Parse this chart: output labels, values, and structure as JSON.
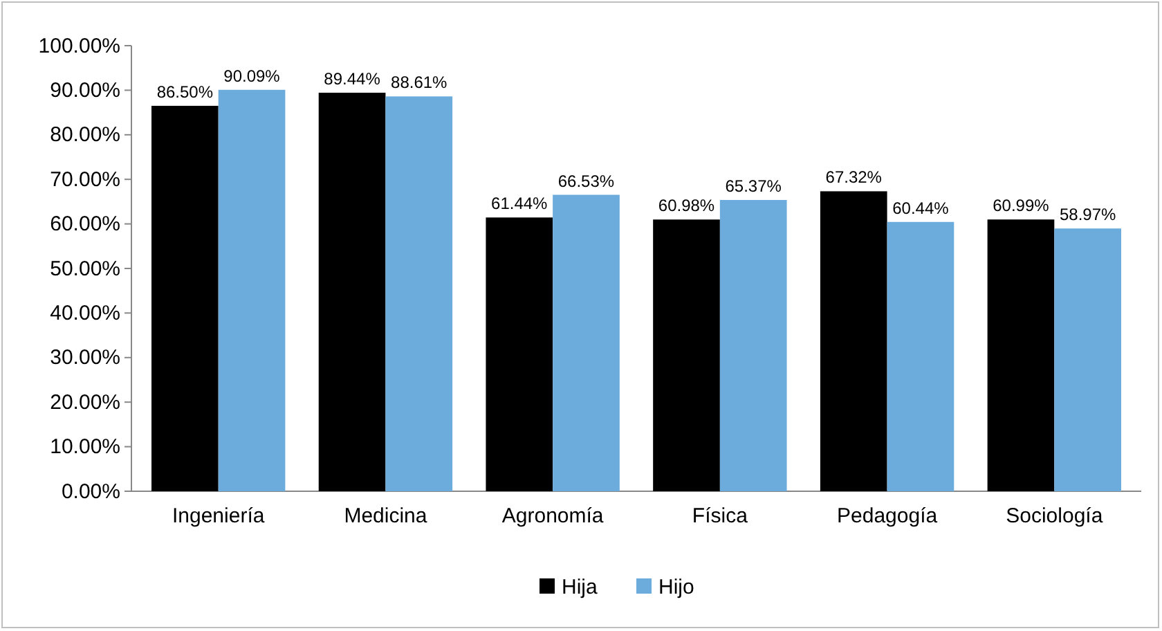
{
  "chart_data": {
    "type": "bar",
    "categories": [
      "Ingeniería",
      "Medicina",
      "Agronomía",
      "Física",
      "Pedagogía",
      "Sociología"
    ],
    "series": [
      {
        "name": "Hija",
        "color": "#000000",
        "values": [
          86.5,
          89.44,
          61.44,
          60.98,
          67.32,
          60.99
        ],
        "value_labels": [
          "86.50%",
          "89.44%",
          "61.44%",
          "60.98%",
          "67.32%",
          "60.99%"
        ]
      },
      {
        "name": "Hijo",
        "color": "#6cacdc",
        "values": [
          90.09,
          88.61,
          66.53,
          65.37,
          60.44,
          58.97
        ],
        "value_labels": [
          "90.09%",
          "88.61%",
          "66.53%",
          "65.37%",
          "60.44%",
          "58.97%"
        ]
      }
    ],
    "ylim": [
      0,
      100
    ],
    "yticks": [
      {
        "value": 0,
        "label": "0.00%"
      },
      {
        "value": 10,
        "label": "10.00%"
      },
      {
        "value": 20,
        "label": "20.00%"
      },
      {
        "value": 30,
        "label": "30.00%"
      },
      {
        "value": 40,
        "label": "40.00%"
      },
      {
        "value": 50,
        "label": "50.00%"
      },
      {
        "value": 60,
        "label": "60.00%"
      },
      {
        "value": 70,
        "label": "70.00%"
      },
      {
        "value": 80,
        "label": "80.00%"
      },
      {
        "value": 90,
        "label": "90.00%"
      },
      {
        "value": 100,
        "label": "100.00%"
      }
    ],
    "grid": false,
    "legend": "bottom"
  }
}
